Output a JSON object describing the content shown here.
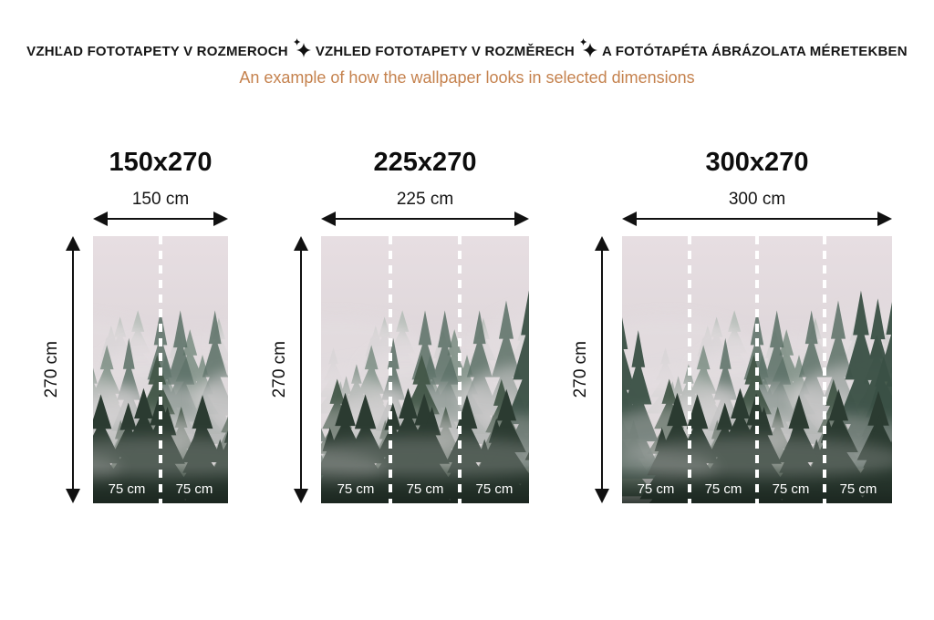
{
  "header": {
    "title_segments": [
      "VZHĽAD FOTOTAPETY V ROZMEROCH",
      "VZHLED FOTOTAPETY V ROZMĚRECH",
      "A FOTÓTAPÉTA ÁBRÁZOLATA MÉRETEKBEN"
    ],
    "separator_icon": "sparkle-icon",
    "subtitle": "An example of how the wallpaper looks in selected dimensions"
  },
  "artwork": "foggy-pine-forest-photo",
  "figures": [
    {
      "title": "150x270",
      "width_label": "150 cm",
      "height_label": "270 cm",
      "panels": [
        "75 cm",
        "75 cm"
      ]
    },
    {
      "title": "225x270",
      "width_label": "225 cm",
      "height_label": "270 cm",
      "panels": [
        "75 cm",
        "75 cm",
        "75 cm"
      ]
    },
    {
      "title": "300x270",
      "width_label": "300 cm",
      "height_label": "270 cm",
      "panels": [
        "75 cm",
        "75 cm",
        "75 cm",
        "75 cm"
      ]
    }
  ],
  "colors": {
    "subtitle_accent": "#c5824e",
    "text": "#141414",
    "divider_dash": "#ffffff",
    "forest_dark": "#2b3b31",
    "fog_light": "#e3dde0"
  }
}
